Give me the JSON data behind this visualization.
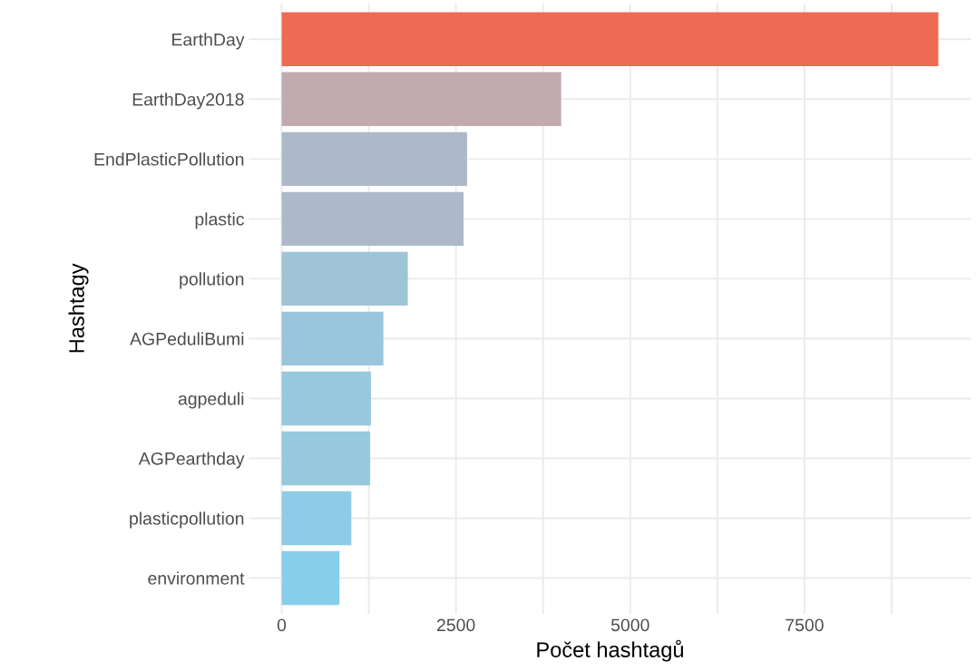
{
  "chart_data": {
    "type": "bar",
    "orientation": "horizontal",
    "xlabel": "Počet hashtagů",
    "ylabel": "Hashtagy",
    "categories": [
      "EarthDay",
      "EarthDay2018",
      "EndPlasticPollution",
      "plastic",
      "pollution",
      "AGPeduliBumi",
      "agpeduli",
      "AGPearthday",
      "plasticpollution",
      "environment"
    ],
    "values": [
      9420,
      4010,
      2660,
      2610,
      1810,
      1460,
      1280,
      1270,
      1000,
      830
    ],
    "colors": [
      "#ee6a53",
      "#c2abae",
      "#adb9c9",
      "#adb9c9",
      "#a0c3d6",
      "#99c6dc",
      "#96c8de",
      "#96c8de",
      "#8ecbe6",
      "#87ceeb"
    ],
    "xlim": [
      -470,
      9890
    ],
    "xticks": [
      0,
      {
        "value": 1250,
        "label": null
      },
      2500,
      {
        "value": 3750,
        "label": null
      },
      5000,
      {
        "value": 6250,
        "label": null
      },
      7500,
      {
        "value": 8750,
        "label": null
      }
    ],
    "grid": true
  }
}
